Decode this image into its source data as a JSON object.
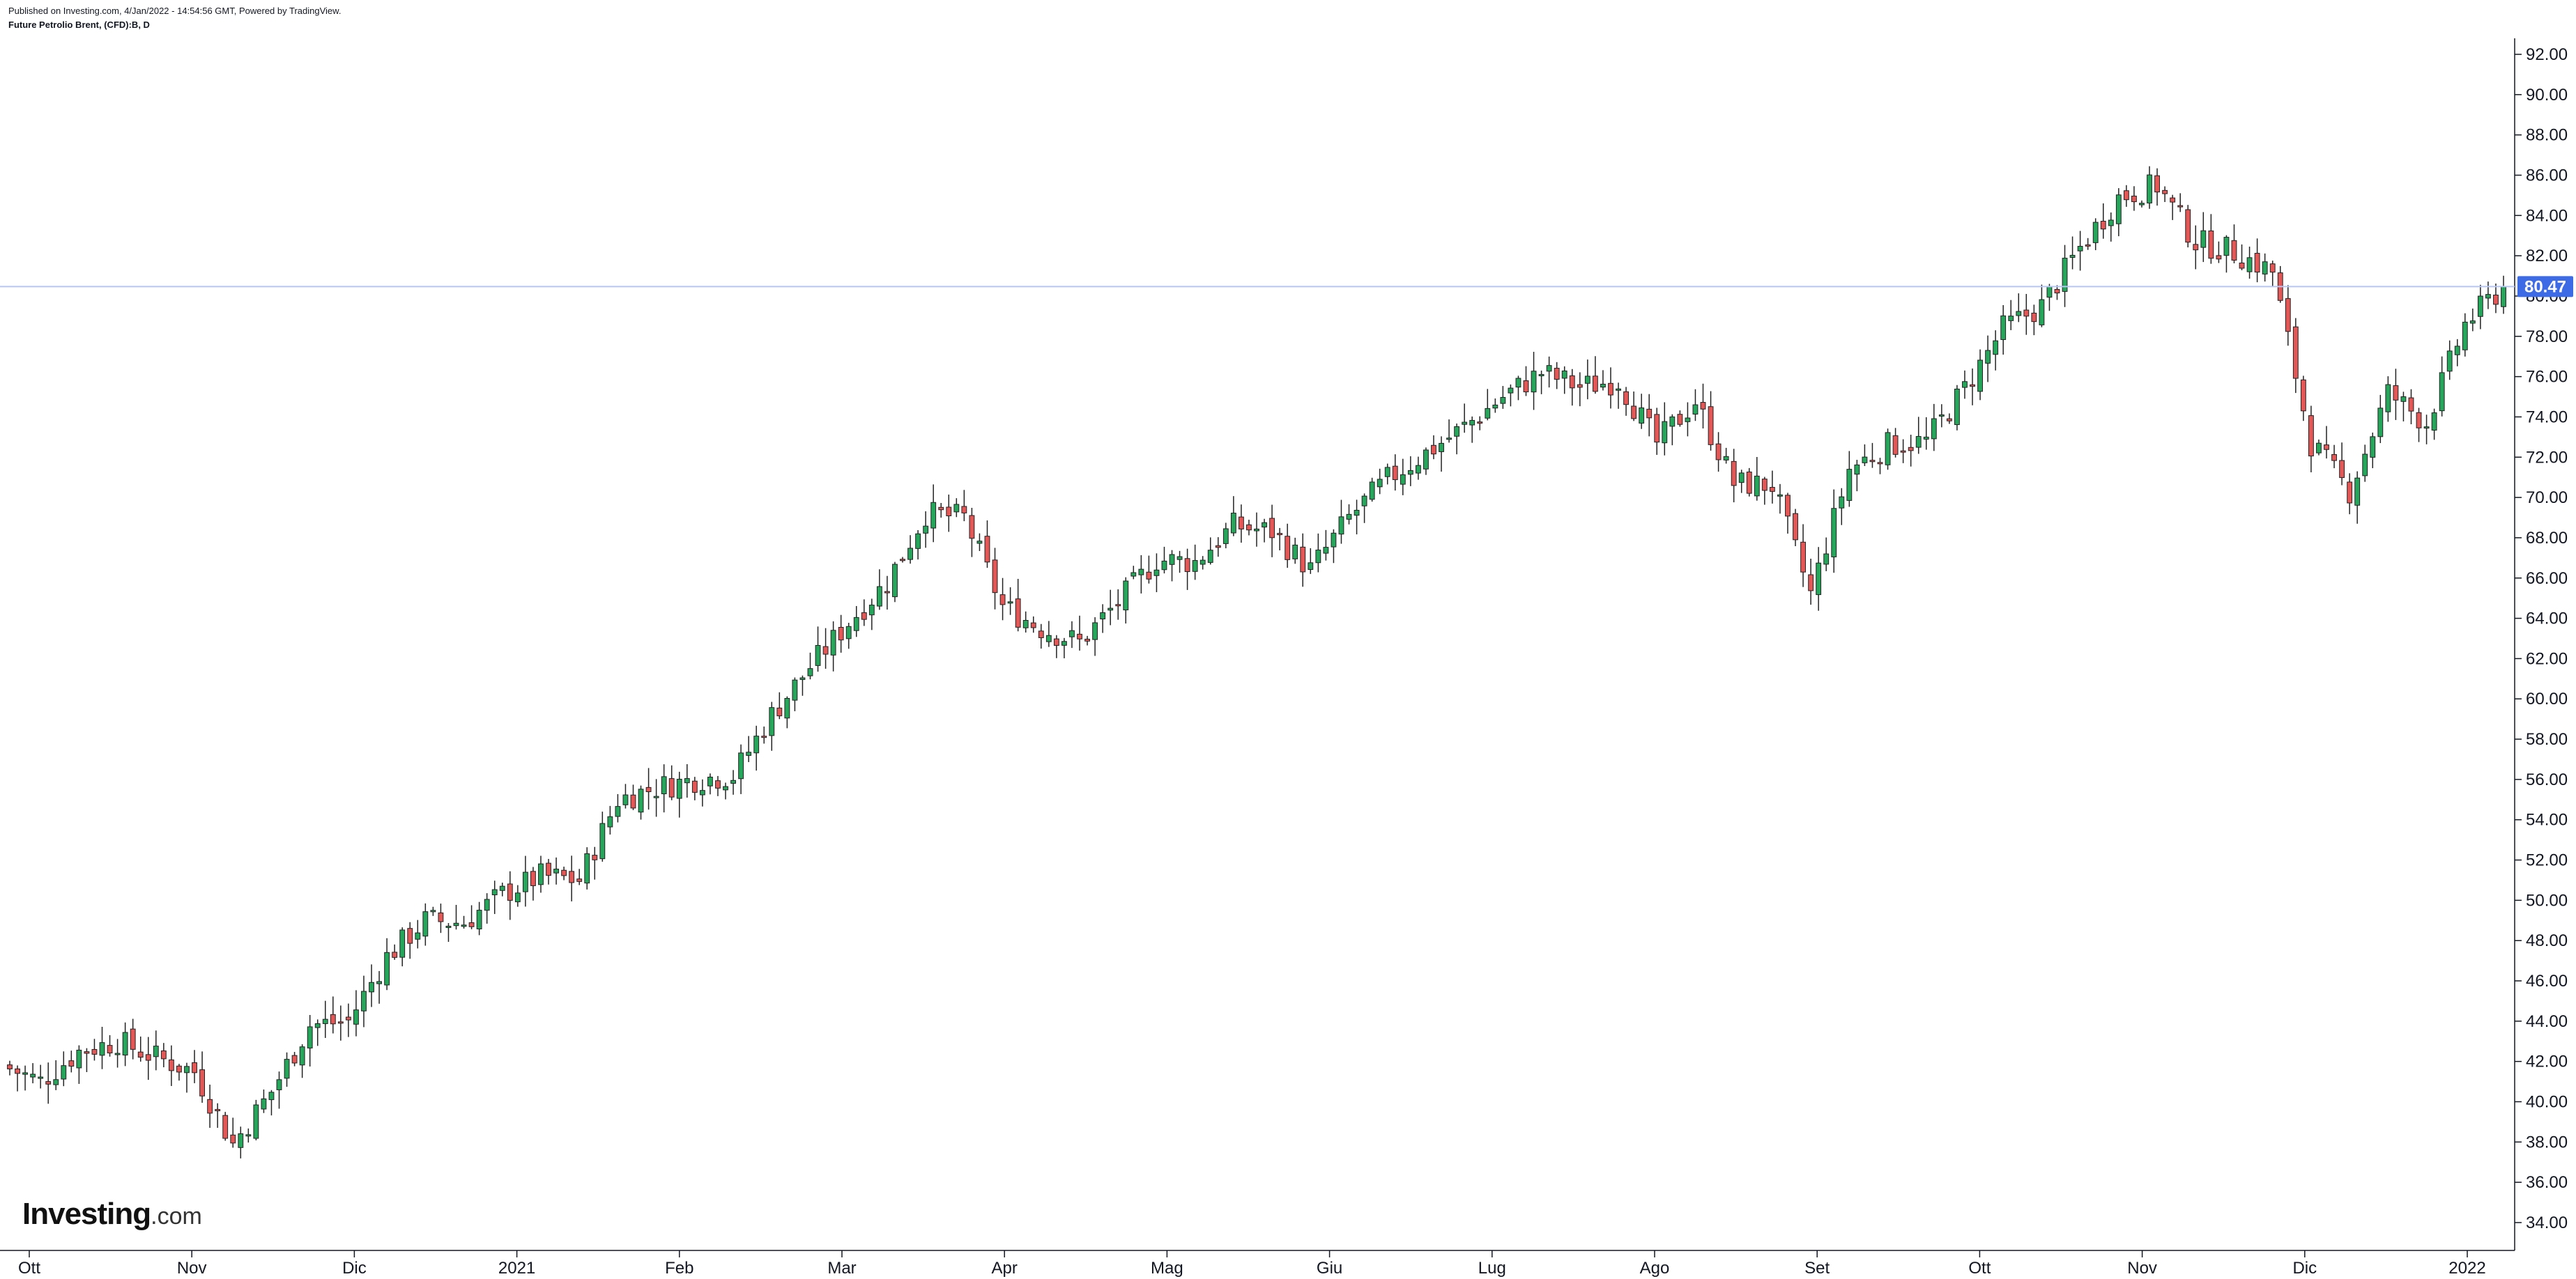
{
  "header": {
    "published": "Published on Investing.com, 4/Jan/2022 - 14:54:56 GMT, Powered by TradingView.",
    "title": "Future Petrolio Brent, (CFD):B, D"
  },
  "logo": {
    "brand": "Investing",
    "suffix": ".com"
  },
  "colors": {
    "up": "#26a65b",
    "down": "#e45757",
    "wick": "#222222",
    "price_line": "#b7c6f5",
    "price_badge": "#3d6be5",
    "axis": "#131722"
  },
  "chart_data": {
    "type": "candlestick",
    "title": "Future Petrolio Brent, (CFD):B, D",
    "x_month_labels": [
      "Ott",
      "Nov",
      "Dic",
      "2021",
      "Feb",
      "Mar",
      "Apr",
      "Mag",
      "Giu",
      "Lug",
      "Ago",
      "Set",
      "Ott",
      "Nov",
      "Dic",
      "2022"
    ],
    "y_ticks": [
      "34.00",
      "36.00",
      "38.00",
      "40.00",
      "42.00",
      "44.00",
      "46.00",
      "48.00",
      "50.00",
      "52.00",
      "54.00",
      "56.00",
      "58.00",
      "60.00",
      "62.00",
      "64.00",
      "66.00",
      "68.00",
      "70.00",
      "72.00",
      "74.00",
      "76.00",
      "78.00",
      "80.00",
      "82.00",
      "84.00",
      "86.00",
      "88.00",
      "90.00",
      "92.00"
    ],
    "ylim": [
      33,
      93
    ],
    "last_price": 80.47,
    "last_price_label": "80.47",
    "weekly_closes": [
      41.8,
      41.0,
      42.5,
      43.0,
      42.2,
      41.5,
      37.9,
      40.5,
      43.8,
      44.0,
      47.2,
      49.0,
      48.9,
      50.3,
      51.2,
      51.0,
      55.0,
      55.6,
      56.0,
      56.2,
      59.2,
      61.6,
      63.8,
      65.8,
      69.2,
      69.0,
      64.6,
      63.5,
      62.8,
      64.8,
      66.9,
      66.8,
      68.6,
      68.3,
      66.4,
      69.0,
      70.9,
      72.2,
      73.5,
      75.0,
      76.2,
      75.5,
      75.8,
      72.7,
      74.8,
      70.7,
      70.6,
      65.2,
      71.4,
      72.6,
      72.8,
      75.4,
      78.4,
      79.5,
      82.4,
      84.9,
      85.5,
      82.7,
      82.2,
      81.2,
      72.7,
      70.3,
      75.2,
      73.7,
      78.6,
      80.47
    ]
  }
}
